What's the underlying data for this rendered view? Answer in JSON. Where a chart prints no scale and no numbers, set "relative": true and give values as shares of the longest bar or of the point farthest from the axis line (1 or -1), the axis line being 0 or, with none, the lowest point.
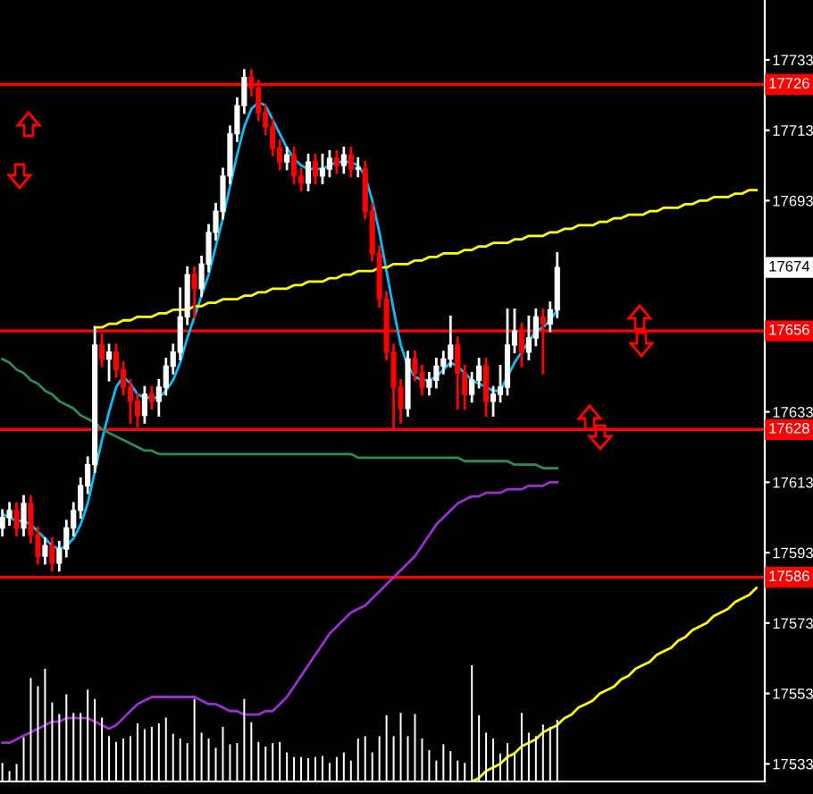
{
  "chart_data": [
    {
      "type": "candlestick",
      "categories": [
        null,
        null,
        null,
        null,
        null,
        null,
        null,
        null,
        null,
        null,
        null,
        null,
        null,
        null,
        null,
        null,
        null,
        null,
        null,
        null,
        null,
        null,
        null,
        null,
        null,
        null,
        null,
        null,
        null,
        null,
        null,
        null,
        null,
        null,
        null,
        null,
        null,
        null,
        null,
        null,
        null,
        null,
        null,
        null,
        null,
        null,
        null,
        null,
        null,
        null,
        null,
        null,
        null,
        null,
        null,
        null,
        null,
        null,
        null,
        null,
        null,
        null,
        null,
        null,
        null,
        null,
        null,
        null,
        null,
        null,
        null,
        null,
        null,
        null,
        null,
        null,
        null,
        null,
        null,
        null,
        null,
        null,
        null,
        null,
        null,
        null,
        null,
        null,
        null,
        null,
        null,
        null,
        null,
        null,
        null,
        null,
        null,
        null,
        null,
        null,
        null,
        null,
        null,
        null,
        null,
        null,
        null
      ],
      "ohlc": [
        [
          17600,
          17605,
          17598,
          17603
        ],
        [
          17603,
          17607,
          17601,
          17605
        ],
        [
          17605,
          17607,
          17598,
          17600
        ],
        [
          17600,
          17609,
          17598,
          17607
        ],
        [
          17607,
          17609,
          17596,
          17598
        ],
        [
          17598,
          17600,
          17590,
          17592
        ],
        [
          17592,
          17597,
          17590,
          17595
        ],
        [
          17595,
          17597,
          17588,
          17590
        ],
        [
          17590,
          17596,
          17588,
          17594
        ],
        [
          17594,
          17602,
          17592,
          17600
        ],
        [
          17600,
          17607,
          17598,
          17605
        ],
        [
          17605,
          17614,
          17603,
          17612
        ],
        [
          17612,
          17620,
          17610,
          17618
        ],
        [
          17618,
          17657,
          17616,
          17652
        ],
        [
          17652,
          17655,
          17646,
          17648
        ],
        [
          17648,
          17652,
          17642,
          17650
        ],
        [
          17650,
          17652,
          17643,
          17645
        ],
        [
          17645,
          17647,
          17638,
          17640
        ],
        [
          17640,
          17642,
          17630,
          17636
        ],
        [
          17636,
          17638,
          17629,
          17632
        ],
        [
          17632,
          17640,
          17630,
          17638
        ],
        [
          17638,
          17640,
          17634,
          17636
        ],
        [
          17636,
          17642,
          17632,
          17640
        ],
        [
          17640,
          17648,
          17638,
          17646
        ],
        [
          17646,
          17652,
          17644,
          17650
        ],
        [
          17650,
          17668,
          17648,
          17660
        ],
        [
          17660,
          17674,
          17658,
          17672
        ],
        [
          17672,
          17674,
          17660,
          17668
        ],
        [
          17668,
          17677,
          17666,
          17675
        ],
        [
          17675,
          17686,
          17673,
          17684
        ],
        [
          17684,
          17692,
          17682,
          17690
        ],
        [
          17690,
          17702,
          17688,
          17700
        ],
        [
          17700,
          17714,
          17698,
          17712
        ],
        [
          17712,
          17722,
          17710,
          17720
        ],
        [
          17720,
          17730,
          17718,
          17728
        ],
        [
          17728,
          17730,
          17723,
          17725
        ],
        [
          17725,
          17727,
          17716,
          17718
        ],
        [
          17718,
          17720,
          17712,
          17714
        ],
        [
          17714,
          17716,
          17706,
          17708
        ],
        [
          17708,
          17710,
          17702,
          17704
        ],
        [
          17704,
          17708,
          17702,
          17706
        ],
        [
          17706,
          17708,
          17698,
          17700
        ],
        [
          17700,
          17702,
          17696,
          17698
        ],
        [
          17698,
          17706,
          17696,
          17704
        ],
        [
          17704,
          17706,
          17698,
          17700
        ],
        [
          17700,
          17706,
          17698,
          17702
        ],
        [
          17702,
          17707,
          17700,
          17705
        ],
        [
          17705,
          17707,
          17701,
          17703
        ],
        [
          17703,
          17708,
          17701,
          17706
        ],
        [
          17706,
          17708,
          17700,
          17702
        ],
        [
          17702,
          17705,
          17700,
          17702
        ],
        [
          17702,
          17704,
          17688,
          17690
        ],
        [
          17690,
          17692,
          17676,
          17678
        ],
        [
          17678,
          17680,
          17663,
          17665
        ],
        [
          17665,
          17667,
          17648,
          17650
        ],
        [
          17650,
          17652,
          17628,
          17640
        ],
        [
          17640,
          17642,
          17630,
          17634
        ],
        [
          17634,
          17650,
          17632,
          17648
        ],
        [
          17648,
          17650,
          17642,
          17644
        ],
        [
          17644,
          17646,
          17638,
          17640
        ],
        [
          17640,
          17644,
          17638,
          17642
        ],
        [
          17642,
          17648,
          17640,
          17646
        ],
        [
          17646,
          17650,
          17644,
          17648
        ],
        [
          17648,
          17660,
          17646,
          17652
        ],
        [
          17652,
          17654,
          17634,
          17644
        ],
        [
          17644,
          17646,
          17634,
          17638
        ],
        [
          17638,
          17644,
          17636,
          17642
        ],
        [
          17642,
          17648,
          17640,
          17646
        ],
        [
          17646,
          17648,
          17632,
          17636
        ],
        [
          17636,
          17640,
          17632,
          17638
        ],
        [
          17638,
          17646,
          17636,
          17640
        ],
        [
          17640,
          17662,
          17638,
          17652
        ],
        [
          17652,
          17662,
          17650,
          17656
        ],
        [
          17656,
          17658,
          17646,
          17650
        ],
        [
          17650,
          17660,
          17648,
          17654
        ],
        [
          17654,
          17662,
          17652,
          17660
        ],
        [
          17660,
          17662,
          17644,
          17658
        ],
        [
          17658,
          17664,
          17656,
          17662
        ],
        [
          17662,
          17678,
          17660,
          17674
        ],
        null,
        null,
        null,
        null,
        null,
        null,
        null,
        null,
        null,
        null,
        null,
        null,
        null,
        null,
        null,
        null,
        null,
        null,
        null,
        null,
        null,
        null,
        null,
        null,
        null,
        null,
        null,
        null
      ],
      "colors": [
        "#ffffff",
        "#ffffff",
        "#ff0000",
        "#ffffff",
        "#ff0000",
        "#ff0000",
        "#ffffff",
        "#ff0000",
        "#ffffff",
        "#ffffff",
        "#ffffff",
        "#ffffff",
        "#ffffff",
        "#ffffff",
        "#ff0000",
        "#ffffff",
        "#ff0000",
        "#ff0000",
        "#ff0000",
        "#ff0000",
        "#ffffff",
        "#ff0000",
        "#ffffff",
        "#ffffff",
        "#ffffff",
        "#ffffff",
        "#ffffff",
        "#ff0000",
        "#ffffff",
        "#ffffff",
        "#ffffff",
        "#ffffff",
        "#ffffff",
        "#ffffff",
        "#ffffff",
        "#ff0000",
        "#ff0000",
        "#ff0000",
        "#ff0000",
        "#ff0000",
        "#ffffff",
        "#ff0000",
        "#ff0000",
        "#ffffff",
        "#ff0000",
        "#ffffff",
        "#ffffff",
        "#ff0000",
        "#ffffff",
        "#ff0000",
        "#ffffff",
        "#ff0000",
        "#ff0000",
        "#ff0000",
        "#ff0000",
        "#ff0000",
        "#ff0000",
        "#ffffff",
        "#ff0000",
        "#ff0000",
        "#ffffff",
        "#ffffff",
        "#ffffff",
        "#ffffff",
        "#ff0000",
        "#ff0000",
        "#ffffff",
        "#ffffff",
        "#ff0000",
        "#ffffff",
        "#ffffff",
        "#ffffff",
        "#ffffff",
        "#ff0000",
        "#ffffff",
        "#ffffff",
        "#ff0000",
        "#ffffff",
        "#ffffff",
        null,
        null,
        null,
        null,
        null,
        null,
        null,
        null,
        null,
        null,
        null,
        null,
        null,
        null,
        null,
        null,
        null,
        null,
        null,
        null,
        null,
        null,
        null,
        null,
        null,
        null,
        null,
        null
      ],
      "series": [
        {
          "type": "line",
          "color": "#00bfff",
          "values": [
            17604,
            17603,
            17602,
            17602,
            17601,
            17599,
            17597,
            17595,
            17594,
            17595,
            17597,
            17601,
            17607,
            17616,
            17625,
            17633,
            17640,
            17643,
            17641,
            17638,
            17637,
            17637,
            17637,
            17639,
            17642,
            17647,
            17654,
            17660,
            17666,
            17672,
            17680,
            17688,
            17697,
            17706,
            17714,
            17719,
            17721,
            17720,
            17716,
            17712,
            17708,
            17705,
            17703,
            17702,
            17702,
            17702,
            17703,
            17704,
            17704,
            17704,
            17703,
            17700,
            17693,
            17684,
            17673,
            17662,
            17652,
            17646,
            17643,
            17642,
            17642,
            17643,
            17645,
            17647,
            17646,
            17644,
            17642,
            17641,
            17640,
            17639,
            17639,
            17643,
            17647,
            17650,
            17653,
            17656,
            17657,
            17659,
            17662,
            null,
            null,
            null,
            null,
            null,
            null,
            null,
            null,
            null,
            null,
            null,
            null,
            null,
            null,
            null,
            null,
            null,
            null,
            null,
            null,
            null,
            null,
            null,
            null,
            null,
            null,
            null,
            null
          ]
        },
        {
          "type": "line",
          "color": "#2e8b57",
          "values": [
            17648,
            17647,
            17645,
            17644,
            17642,
            17641,
            17639,
            17638,
            17636,
            17635,
            17634,
            17632,
            17631,
            17630,
            17628,
            17627,
            17626,
            17625,
            17624,
            17623,
            17622,
            17622,
            17621,
            17621,
            17621,
            17621,
            17621,
            17621,
            17621,
            17621,
            17621,
            17621,
            17621,
            17621,
            17621,
            17621,
            17621,
            17621,
            17621,
            17621,
            17621,
            17621,
            17621,
            17621,
            17621,
            17621,
            17621,
            17621,
            17621,
            17621,
            17620,
            17620,
            17620,
            17620,
            17620,
            17620,
            17620,
            17620,
            17620,
            17620,
            17620,
            17620,
            17620,
            17620,
            17620,
            17619,
            17619,
            17619,
            17619,
            17619,
            17619,
            17619,
            17618,
            17618,
            17618,
            17618,
            17617,
            17617,
            17617,
            null,
            null,
            null,
            null,
            null,
            null,
            null,
            null,
            null,
            null,
            null,
            null,
            null,
            null,
            null,
            null,
            null,
            null,
            null,
            null,
            null,
            null,
            null,
            null,
            null,
            null,
            null,
            null
          ]
        },
        {
          "type": "line",
          "color": "#9932cc",
          "values": [
            17539,
            17539,
            17540,
            17541,
            17542,
            17543,
            17544,
            17545,
            17545,
            17546,
            17546,
            17546,
            17546,
            17545,
            17544,
            17543,
            17544,
            17546,
            17548,
            17550,
            17551,
            17552,
            17552,
            17552,
            17552,
            17552,
            17552,
            17552,
            17551,
            17550,
            17550,
            17549,
            17548,
            17548,
            17547,
            17547,
            17547,
            17548,
            17548,
            17550,
            17552,
            17555,
            17558,
            17561,
            17564,
            17567,
            17570,
            17572,
            17574,
            17576,
            17577,
            17578,
            17580,
            17582,
            17584,
            17586,
            17588,
            17590,
            17592,
            17595,
            17598,
            17601,
            17603,
            17605,
            17607,
            17608,
            17609,
            17609,
            17610,
            17610,
            17610,
            17611,
            17611,
            17611,
            17612,
            17612,
            17612,
            17613,
            17613,
            null,
            null,
            null,
            null,
            null,
            null,
            null,
            null,
            null,
            null,
            null,
            null,
            null,
            null,
            null,
            null,
            null,
            null,
            null,
            null,
            null,
            null,
            null,
            null,
            null,
            null,
            null,
            null
          ]
        },
        {
          "type": "line",
          "color": "#ffff00",
          "values": [
            null,
            null,
            null,
            null,
            null,
            null,
            null,
            null,
            null,
            null,
            null,
            null,
            null,
            17657,
            17657,
            17658,
            17658,
            17659,
            17659,
            17660,
            17660,
            17660,
            17661,
            17661,
            17662,
            17662,
            17662,
            17663,
            17663,
            17664,
            17664,
            17665,
            17665,
            17665,
            17666,
            17666,
            17667,
            17667,
            17668,
            17668,
            17668,
            17669,
            17669,
            17670,
            17670,
            17670,
            17671,
            17671,
            17672,
            17672,
            17673,
            17673,
            17673,
            17674,
            17674,
            17675,
            17675,
            17675,
            17676,
            17676,
            17677,
            17677,
            17678,
            17678,
            17678,
            17679,
            17679,
            17680,
            17680,
            17681,
            17681,
            17681,
            17682,
            17682,
            17683,
            17683,
            17683,
            17684,
            17684,
            17685,
            17685,
            17686,
            17686,
            17686,
            17687,
            17687,
            17688,
            17688,
            17689,
            17689,
            17689,
            17690,
            17690,
            17691,
            17691,
            17691,
            17692,
            17692,
            17693,
            17693,
            17694,
            17694,
            17694,
            17695,
            17695,
            17696,
            17696
          ]
        },
        {
          "type": "line",
          "color": "#ffff00",
          "values": [
            null,
            null,
            null,
            null,
            null,
            null,
            null,
            null,
            null,
            null,
            null,
            null,
            null,
            null,
            null,
            null,
            null,
            null,
            null,
            null,
            null,
            null,
            null,
            null,
            null,
            null,
            null,
            null,
            null,
            null,
            null,
            null,
            null,
            null,
            null,
            null,
            null,
            null,
            null,
            null,
            null,
            null,
            null,
            null,
            null,
            null,
            null,
            null,
            null,
            null,
            null,
            null,
            null,
            null,
            null,
            null,
            null,
            null,
            null,
            null,
            null,
            null,
            null,
            null,
            null,
            null,
            17528,
            17529,
            17531,
            17532,
            17533,
            17535,
            17536,
            17538,
            17539,
            17540,
            17542,
            17543,
            17544,
            17546,
            17547,
            17549,
            17550,
            17551,
            17553,
            17554,
            17555,
            17557,
            17558,
            17560,
            17561,
            17562,
            17564,
            17565,
            17566,
            17568,
            17569,
            17571,
            17572,
            17573,
            17575,
            17576,
            17577,
            17579,
            17580,
            17581,
            17583
          ]
        }
      ],
      "ylim": [
        17528,
        17750
      ],
      "yticks": [
        17533,
        17553,
        17573,
        17593,
        17613,
        17633,
        17693,
        17713,
        17733
      ],
      "ref_lines": [
        {
          "axis": "y",
          "value": 17726,
          "label": "17726",
          "color": "#ff0000"
        },
        {
          "axis": "y",
          "value": 17656,
          "label": "17656",
          "color": "#ff0000"
        },
        {
          "axis": "y",
          "value": 17628,
          "label": "17628",
          "color": "#ff0000"
        },
        {
          "axis": "y",
          "value": 17586,
          "label": "17586",
          "color": "#ff0000"
        }
      ],
      "annotations": [
        {
          "text": "17674",
          "y": 17674
        }
      ],
      "grid": false,
      "legend": false
    },
    {
      "type": "bar",
      "relative": true,
      "color": "#ffffff",
      "categories": [
        null,
        null,
        null,
        null,
        null,
        null,
        null,
        null,
        null,
        null,
        null,
        null,
        null,
        null,
        null,
        null,
        null,
        null,
        null,
        null,
        null,
        null,
        null,
        null,
        null,
        null,
        null,
        null,
        null,
        null,
        null,
        null,
        null,
        null,
        null,
        null,
        null,
        null,
        null,
        null,
        null,
        null,
        null,
        null,
        null,
        null,
        null,
        null,
        null,
        null,
        null,
        null,
        null,
        null,
        null,
        null,
        null,
        null,
        null,
        null,
        null,
        null,
        null,
        null,
        null,
        null,
        null,
        null,
        null,
        null,
        null,
        null,
        null,
        null,
        null,
        null,
        null,
        null,
        null,
        null,
        null,
        null,
        null,
        null,
        null,
        null,
        null,
        null,
        null,
        null,
        null,
        null,
        null,
        null,
        null,
        null,
        null,
        null,
        null,
        null,
        null,
        null,
        null,
        null,
        null,
        null,
        null
      ],
      "values": [
        0.16,
        0.09,
        0.15,
        0.38,
        0.89,
        0.82,
        0.97,
        0.68,
        0.58,
        0.75,
        0.59,
        0.59,
        0.79,
        0.71,
        0.55,
        0.39,
        0.34,
        0.37,
        0.39,
        0.5,
        0.45,
        0.47,
        0.5,
        0.55,
        0.41,
        0.37,
        0.33,
        0.71,
        0.42,
        0.37,
        0.29,
        0.47,
        0.32,
        0.33,
        0.71,
        0.51,
        0.34,
        0.3,
        0.33,
        0.34,
        0.25,
        0.21,
        0.21,
        0.2,
        0.21,
        0.22,
        0.16,
        0.21,
        0.25,
        0.18,
        0.37,
        0.39,
        0.25,
        0.39,
        0.57,
        0.39,
        0.59,
        0.39,
        0.58,
        0.37,
        0.27,
        0.18,
        0.32,
        0.26,
        0.18,
        0.16,
        1,
        0.57,
        0.42,
        0.37,
        0.24,
        0.33,
        0.24,
        0.59,
        0.42,
        0.39,
        0.49,
        0.47,
        0.53,
        null,
        null,
        null,
        null,
        null,
        null,
        null,
        null,
        null,
        null,
        null,
        null,
        null,
        null,
        null,
        null,
        null,
        null,
        null,
        null,
        null,
        null,
        null,
        null,
        null,
        null,
        null,
        null
      ]
    }
  ]
}
